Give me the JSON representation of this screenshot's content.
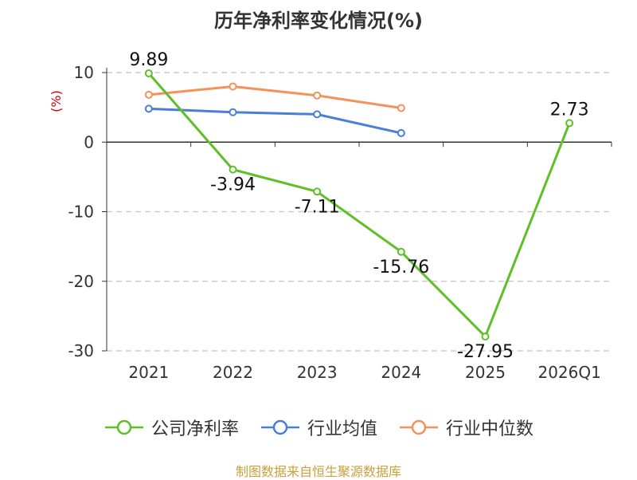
{
  "chart_data": {
    "type": "line",
    "title": "历年净利率变化情况(%)",
    "ylabel": "(%)",
    "xlabel": "",
    "categories": [
      "2021",
      "2022",
      "2023",
      "2024",
      "2025",
      "2026Q1"
    ],
    "ylim": [
      -30,
      10
    ],
    "yticks": [
      10,
      0,
      -10,
      -20,
      -30
    ],
    "grid": true,
    "legend_position": "bottom",
    "series": [
      {
        "name": "公司净利率",
        "color": "#5ec026",
        "values": [
          9.89,
          -3.94,
          -7.11,
          -15.76,
          -27.95,
          2.73
        ],
        "labels": [
          "9.89",
          "-3.94",
          "-7.11",
          "-15.76",
          "-27.95",
          "2.73"
        ]
      },
      {
        "name": "行业均值",
        "color": "#4a7fd8",
        "values": [
          4.8,
          4.3,
          4.0,
          1.3,
          null,
          null
        ]
      },
      {
        "name": "行业中位数",
        "color": "#f5915a",
        "values": [
          6.8,
          8.0,
          6.7,
          4.9,
          null,
          null
        ]
      }
    ]
  },
  "source_note": "制图数据来自恒生聚源数据库"
}
